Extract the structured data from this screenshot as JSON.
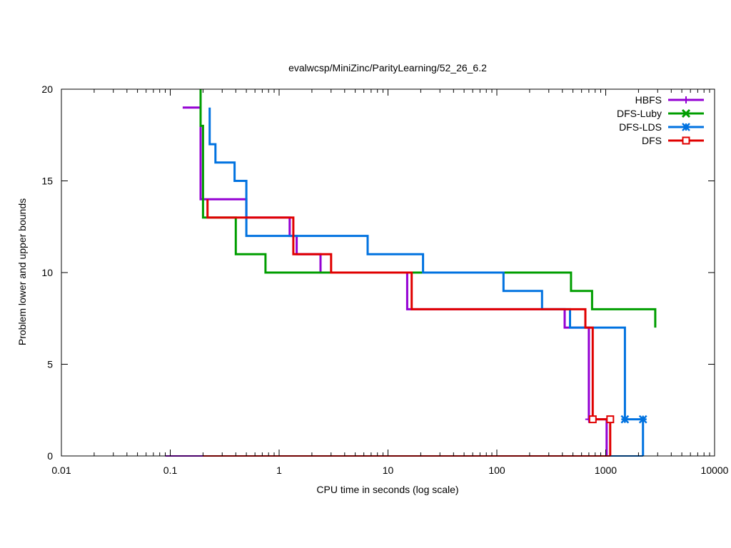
{
  "chart_data": {
    "type": "line",
    "title": "evalwcsp/MiniZinc/ParityLearning/52_26_6.2",
    "xlabel": "CPU time in seconds (log scale)",
    "ylabel": "Problem lower and upper bounds",
    "xscale": "log",
    "xlim": [
      0.01,
      10000
    ],
    "ylim": [
      0,
      20
    ],
    "xticks": [
      {
        "value": 0.01,
        "label": "0.01"
      },
      {
        "value": 0.1,
        "label": "0.1"
      },
      {
        "value": 1,
        "label": "1"
      },
      {
        "value": 10,
        "label": "10"
      },
      {
        "value": 100,
        "label": "100"
      },
      {
        "value": 1000,
        "label": "1000"
      },
      {
        "value": 10000,
        "label": "10000"
      }
    ],
    "yticks": [
      {
        "value": 0,
        "label": "0"
      },
      {
        "value": 5,
        "label": "5"
      },
      {
        "value": 10,
        "label": "10"
      },
      {
        "value": 15,
        "label": "15"
      },
      {
        "value": 20,
        "label": "20"
      }
    ],
    "legend_position": "top-right",
    "grid": false,
    "series": [
      {
        "name": "HBFS",
        "color": "#9400d3",
        "marker": "plus",
        "upper": [
          [
            0.13,
            19
          ],
          [
            0.19,
            19
          ],
          [
            0.19,
            14
          ],
          [
            0.5,
            14
          ],
          [
            0.5,
            13
          ],
          [
            1.25,
            13
          ],
          [
            1.25,
            12
          ],
          [
            1.45,
            12
          ],
          [
            1.45,
            11
          ],
          [
            2.4,
            11
          ],
          [
            2.4,
            10
          ],
          [
            15,
            10
          ],
          [
            15,
            8
          ],
          [
            420,
            8
          ],
          [
            420,
            7
          ],
          [
            700,
            7
          ],
          [
            700,
            2
          ],
          [
            1020,
            2
          ],
          [
            1020,
            0
          ]
        ],
        "lower": [
          [
            0.09,
            0
          ],
          [
            0.16,
            0
          ],
          [
            1020,
            0
          ]
        ],
        "marker_points": [
          [
            700,
            2
          ]
        ]
      },
      {
        "name": "DFS-Luby",
        "color": "#009e00",
        "marker": "x",
        "upper": [
          [
            0.19,
            20
          ],
          [
            0.19,
            18
          ],
          [
            0.2,
            18
          ],
          [
            0.2,
            13
          ],
          [
            0.4,
            13
          ],
          [
            0.4,
            11
          ],
          [
            0.75,
            11
          ],
          [
            0.75,
            10
          ],
          [
            480,
            10
          ],
          [
            480,
            9
          ],
          [
            750,
            9
          ],
          [
            750,
            8
          ],
          [
            2850,
            8
          ],
          [
            2850,
            7
          ]
        ],
        "lower": [],
        "marker_points": []
      },
      {
        "name": "DFS-LDS",
        "color": "#0072e0",
        "marker": "star",
        "upper": [
          [
            0.23,
            19
          ],
          [
            0.23,
            17
          ],
          [
            0.26,
            17
          ],
          [
            0.26,
            16
          ],
          [
            0.39,
            16
          ],
          [
            0.39,
            15
          ],
          [
            0.5,
            15
          ],
          [
            0.5,
            12
          ],
          [
            6.5,
            12
          ],
          [
            6.5,
            11
          ],
          [
            21,
            11
          ],
          [
            21,
            10
          ],
          [
            115,
            10
          ],
          [
            115,
            9
          ],
          [
            260,
            9
          ],
          [
            260,
            8
          ],
          [
            470,
            8
          ],
          [
            470,
            7
          ],
          [
            1500,
            7
          ],
          [
            1500,
            2
          ],
          [
            2200,
            2
          ],
          [
            2200,
            0
          ]
        ],
        "lower": [
          [
            1000,
            0
          ],
          [
            2200,
            0
          ]
        ],
        "marker_points": [
          [
            1500,
            2
          ],
          [
            2200,
            2
          ]
        ]
      },
      {
        "name": "DFS",
        "color": "#e00000",
        "marker": "square",
        "upper": [
          [
            0.22,
            14
          ],
          [
            0.22,
            13
          ],
          [
            1.35,
            13
          ],
          [
            1.35,
            11
          ],
          [
            3,
            11
          ],
          [
            3,
            10
          ],
          [
            16.5,
            10
          ],
          [
            16.5,
            8
          ],
          [
            650,
            8
          ],
          [
            650,
            7
          ],
          [
            760,
            7
          ],
          [
            760,
            2
          ],
          [
            1100,
            2
          ],
          [
            1100,
            0
          ]
        ],
        "lower": [
          [
            0.2,
            0
          ],
          [
            1100,
            0
          ]
        ],
        "marker_points": [
          [
            760,
            2
          ],
          [
            1100,
            2
          ]
        ]
      }
    ]
  }
}
